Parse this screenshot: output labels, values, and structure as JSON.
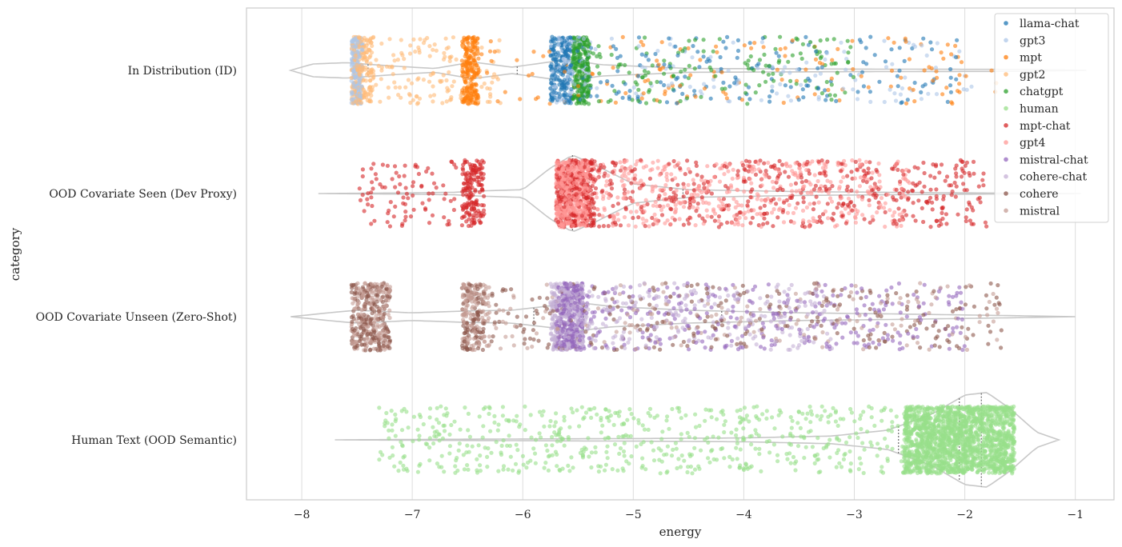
{
  "chart_data": {
    "type": "scatter",
    "subtype": "strip-violin",
    "title": "",
    "xlabel": "energy",
    "ylabel": "category",
    "xlim": [
      -8.5,
      -0.65
    ],
    "xticks": [
      -8,
      -7,
      -6,
      -5,
      -4,
      -3,
      -2,
      -1
    ],
    "xtick_labels": [
      "−8",
      "−7",
      "−6",
      "−5",
      "−4",
      "−3",
      "−2",
      "−1"
    ],
    "categories": [
      "In Distribution (ID)",
      "OOD Covariate Seen (Dev Proxy)",
      "OOD Covariate Unseen (Zero-Shot)",
      "Human Text (OOD Semantic)"
    ],
    "grid": "vertical",
    "legend_position": "top-right",
    "series": [
      {
        "name": "llama-chat",
        "color": "#1f77b4",
        "category": "In Distribution (ID)",
        "spread": [
          [
            -5.75,
            -5.55,
            0.55
          ],
          [
            -5.55,
            -2.0,
            0.45
          ]
        ]
      },
      {
        "name": "gpt3",
        "color": "#aec7e8",
        "category": "In Distribution (ID)",
        "spread": [
          [
            -7.55,
            -7.45,
            0.4
          ],
          [
            -5.75,
            -5.4,
            0.3
          ],
          [
            -5.4,
            -1.9,
            0.3
          ]
        ]
      },
      {
        "name": "mpt",
        "color": "#ff7f0e",
        "category": "In Distribution (ID)",
        "spread": [
          [
            -6.55,
            -6.4,
            0.6
          ],
          [
            -6.4,
            -1.7,
            0.4
          ]
        ]
      },
      {
        "name": "gpt2",
        "color": "#ffbb78",
        "category": "In Distribution (ID)",
        "spread": [
          [
            -7.55,
            -7.35,
            0.6
          ],
          [
            -7.35,
            -6.2,
            0.4
          ]
        ]
      },
      {
        "name": "chatgpt",
        "color": "#2ca02c",
        "category": "In Distribution (ID)",
        "spread": [
          [
            -5.55,
            -5.4,
            0.6
          ],
          [
            -5.4,
            -3.0,
            0.4
          ]
        ]
      },
      {
        "name": "human",
        "color": "#98df8a",
        "category": "Human Text (OOD Semantic)",
        "spread": [
          [
            -2.55,
            -1.55,
            0.75
          ],
          [
            -7.3,
            -2.55,
            0.25
          ]
        ]
      },
      {
        "name": "mpt-chat",
        "color": "#d62728",
        "category": "OOD Covariate Seen (Dev Proxy)",
        "spread": [
          [
            -5.7,
            -5.35,
            0.3
          ],
          [
            -7.5,
            -6.6,
            0.1
          ],
          [
            -6.55,
            -6.35,
            0.15
          ],
          [
            -5.35,
            -1.8,
            0.45
          ]
        ]
      },
      {
        "name": "gpt4",
        "color": "#ff9896",
        "category": "OOD Covariate Seen (Dev Proxy)",
        "spread": [
          [
            -5.7,
            -5.4,
            0.55
          ],
          [
            -5.4,
            -2.5,
            0.45
          ]
        ]
      },
      {
        "name": "mistral-chat",
        "color": "#9467bd",
        "category": "OOD Covariate Unseen (Zero-Shot)",
        "spread": [
          [
            -5.7,
            -5.45,
            0.5
          ],
          [
            -5.45,
            -2.0,
            0.5
          ]
        ]
      },
      {
        "name": "cohere-chat",
        "color": "#c5b0d5",
        "category": "OOD Covariate Unseen (Zero-Shot)",
        "spread": [
          [
            -5.75,
            -5.45,
            0.6
          ],
          [
            -5.45,
            -3.2,
            0.4
          ]
        ]
      },
      {
        "name": "cohere",
        "color": "#8c564b",
        "category": "OOD Covariate Unseen (Zero-Shot)",
        "spread": [
          [
            -7.55,
            -7.2,
            0.3
          ],
          [
            -6.55,
            -6.35,
            0.2
          ],
          [
            -6.35,
            -1.65,
            0.5
          ]
        ]
      },
      {
        "name": "mistral",
        "color": "#c49c94",
        "category": "OOD Covariate Unseen (Zero-Shot)",
        "spread": [
          [
            -7.55,
            -7.2,
            0.4
          ],
          [
            -6.55,
            -6.3,
            0.3
          ],
          [
            -6.3,
            -1.6,
            0.3
          ]
        ]
      }
    ],
    "violins": [
      {
        "category": "In Distribution (ID)",
        "range": [
          -8.1,
          -0.9
        ],
        "quartiles": [
          -7.4,
          -6.05,
          -5.45
        ],
        "profile": [
          [
            -8.1,
            0.0
          ],
          [
            -7.9,
            0.1
          ],
          [
            -7.6,
            0.12
          ],
          [
            -7.2,
            0.07
          ],
          [
            -6.8,
            0.03
          ],
          [
            -6.45,
            0.13
          ],
          [
            -6.1,
            0.05
          ],
          [
            -5.8,
            0.12
          ],
          [
            -5.6,
            0.17
          ],
          [
            -5.3,
            0.09
          ],
          [
            -4.5,
            0.03
          ],
          [
            -3.0,
            0.02
          ],
          [
            -1.5,
            0.015
          ],
          [
            -0.9,
            0.0
          ]
        ]
      },
      {
        "category": "OOD Covariate Seen (Dev Proxy)",
        "range": [
          -7.85,
          -0.95
        ],
        "quartiles": [
          -5.55,
          -5.4,
          -4.55
        ],
        "profile": [
          [
            -7.85,
            0.0
          ],
          [
            -7.0,
            0.01
          ],
          [
            -6.6,
            0.02
          ],
          [
            -6.4,
            0.04
          ],
          [
            -6.0,
            0.06
          ],
          [
            -5.75,
            0.4
          ],
          [
            -5.55,
            0.6
          ],
          [
            -5.35,
            0.45
          ],
          [
            -5.0,
            0.15
          ],
          [
            -4.5,
            0.06
          ],
          [
            -3.5,
            0.03
          ],
          [
            -2.0,
            0.01
          ],
          [
            -0.95,
            0.0
          ]
        ]
      },
      {
        "category": "OOD Covariate Unseen (Zero-Shot)",
        "range": [
          -8.1,
          -1.0
        ],
        "quartiles": [
          -5.9,
          -5.45,
          -4.2
        ],
        "profile": [
          [
            -8.1,
            0.0
          ],
          [
            -7.7,
            0.07
          ],
          [
            -7.5,
            0.1
          ],
          [
            -7.0,
            0.06
          ],
          [
            -6.5,
            0.09
          ],
          [
            -6.1,
            0.1
          ],
          [
            -5.7,
            0.18
          ],
          [
            -5.5,
            0.22
          ],
          [
            -5.2,
            0.16
          ],
          [
            -4.5,
            0.1
          ],
          [
            -3.5,
            0.06
          ],
          [
            -2.5,
            0.04
          ],
          [
            -1.7,
            0.02
          ],
          [
            -1.0,
            0.0
          ]
        ]
      },
      {
        "category": "Human Text (OOD Semantic)",
        "range": [
          -7.7,
          -1.15
        ],
        "quartiles": [
          -2.6,
          -2.05,
          -1.85
        ],
        "profile": [
          [
            -7.7,
            0.0
          ],
          [
            -6.5,
            0.01
          ],
          [
            -5.0,
            0.02
          ],
          [
            -4.0,
            0.03
          ],
          [
            -3.2,
            0.06
          ],
          [
            -2.7,
            0.15
          ],
          [
            -2.3,
            0.4
          ],
          [
            -2.0,
            0.7
          ],
          [
            -1.8,
            0.74
          ],
          [
            -1.6,
            0.5
          ],
          [
            -1.35,
            0.12
          ],
          [
            -1.15,
            0.0
          ]
        ]
      }
    ],
    "counts": [
      {
        "category": "In Distribution (ID)",
        "points": 1800
      },
      {
        "category": "OOD Covariate Seen (Dev Proxy)",
        "points": 2000
      },
      {
        "category": "OOD Covariate Unseen (Zero-Shot)",
        "points": 2200
      },
      {
        "category": "Human Text (OOD Semantic)",
        "points": 2400
      }
    ]
  }
}
